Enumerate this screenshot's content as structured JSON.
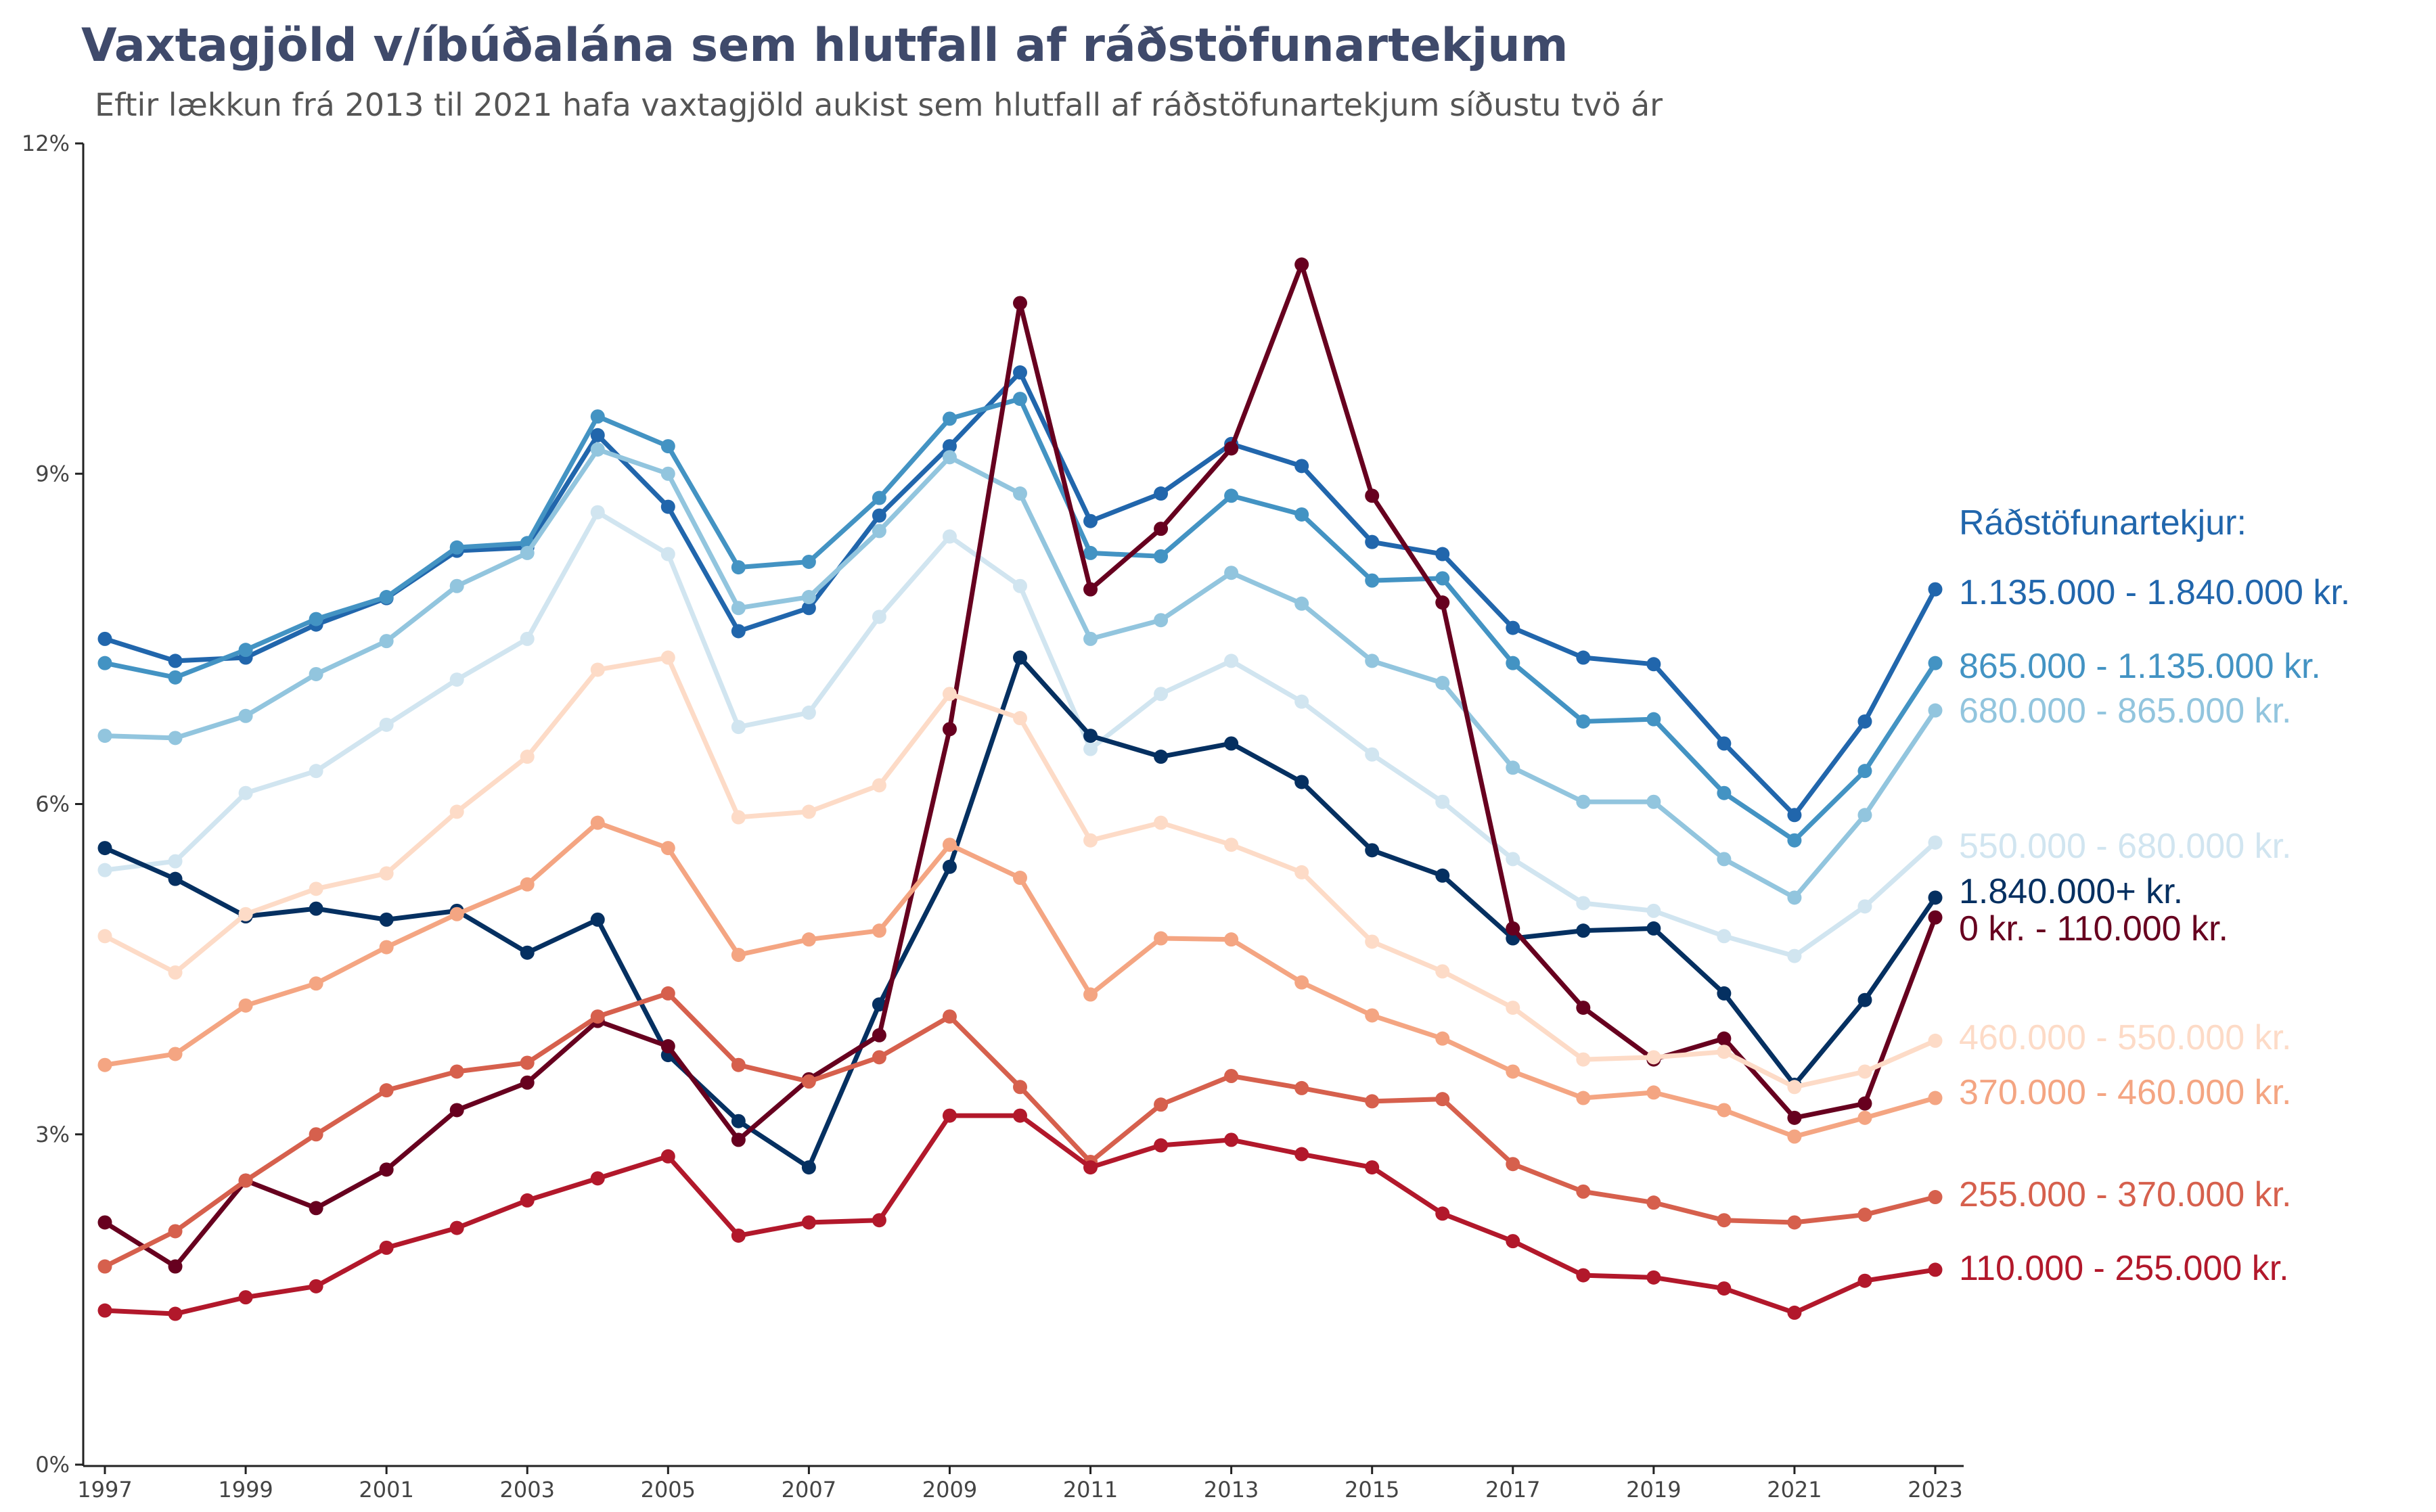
{
  "chart_data": {
    "type": "line",
    "title": "Vaxtagjöld v/íbúðalána sem hlutfall af ráðstöfunartekjum",
    "subtitle": "Eftir lækkun frá 2013 til 2021 hafa vaxtagjöld aukist sem hlutfall af ráðstöfunartekjum síðustu tvö ár",
    "legend_title": "Ráðstöfunartekjur:",
    "x": [
      1997,
      1998,
      1999,
      2000,
      2001,
      2002,
      2003,
      2004,
      2005,
      2006,
      2007,
      2008,
      2009,
      2010,
      2011,
      2012,
      2013,
      2014,
      2015,
      2016,
      2017,
      2018,
      2019,
      2020,
      2021,
      2022,
      2023
    ],
    "x_ticks": [
      1997,
      1999,
      2001,
      2003,
      2005,
      2007,
      2009,
      2011,
      2013,
      2015,
      2017,
      2019,
      2021,
      2023
    ],
    "y_ticks": [
      0,
      3,
      6,
      9,
      12
    ],
    "y_tick_labels": [
      "0%",
      "3%",
      "6%",
      "9%",
      "12%"
    ],
    "ylim": [
      0,
      12
    ],
    "xlabel": "",
    "ylabel": "",
    "grid": false,
    "legend_placement": "right (direct labels at line ends)",
    "series": [
      {
        "name": "1.135.000 - 1.840.000 kr.",
        "color": "#2166ac",
        "values": [
          7.5,
          7.3,
          7.33,
          7.63,
          7.87,
          8.3,
          8.33,
          9.35,
          8.7,
          7.57,
          7.78,
          8.62,
          9.25,
          9.92,
          8.57,
          8.82,
          9.27,
          9.07,
          8.38,
          8.27,
          7.6,
          7.33,
          7.27,
          6.55,
          5.9,
          6.75,
          7.95
        ]
      },
      {
        "name": "865.000 - 1.135.000 kr.",
        "color": "#4393c3",
        "values": [
          7.28,
          7.15,
          7.4,
          7.68,
          7.88,
          8.33,
          8.37,
          9.52,
          9.25,
          8.15,
          8.2,
          8.78,
          9.5,
          9.68,
          8.28,
          8.25,
          8.8,
          8.63,
          8.03,
          8.05,
          7.28,
          6.75,
          6.77,
          6.1,
          5.67,
          6.3,
          7.28
        ]
      },
      {
        "name": "680.000 - 865.000 kr.",
        "color": "#92c5de",
        "values": [
          6.62,
          6.6,
          6.8,
          7.18,
          7.48,
          7.98,
          8.28,
          9.22,
          9.0,
          7.78,
          7.88,
          8.48,
          9.15,
          8.82,
          7.5,
          7.67,
          8.1,
          7.82,
          7.3,
          7.1,
          6.33,
          6.02,
          6.02,
          5.5,
          5.15,
          5.9,
          6.85
        ]
      },
      {
        "name": "550.000 - 680.000 kr.",
        "color": "#d1e5f0",
        "values": [
          5.4,
          5.48,
          6.1,
          6.3,
          6.72,
          7.13,
          7.5,
          8.65,
          8.27,
          6.7,
          6.83,
          7.7,
          8.43,
          7.98,
          6.5,
          7.0,
          7.3,
          6.93,
          6.45,
          6.02,
          5.5,
          5.1,
          5.03,
          4.8,
          4.62,
          5.07,
          5.65
        ]
      },
      {
        "name": "1.840.000+ kr.",
        "color": "#053061",
        "values": [
          5.6,
          5.32,
          4.98,
          5.05,
          4.95,
          5.03,
          4.65,
          4.95,
          3.72,
          3.12,
          2.7,
          4.18,
          5.43,
          7.33,
          6.62,
          6.43,
          6.55,
          6.2,
          5.58,
          5.35,
          4.78,
          4.85,
          4.87,
          4.28,
          3.45,
          4.22,
          5.15
        ]
      },
      {
        "name": "0 kr. - 110.000 kr.",
        "color": "#67001f",
        "values": [
          2.2,
          1.8,
          2.58,
          2.33,
          2.68,
          3.22,
          3.47,
          4.03,
          3.8,
          2.95,
          3.5,
          3.9,
          6.68,
          10.55,
          7.95,
          8.5,
          9.23,
          10.9,
          8.8,
          7.83,
          4.87,
          4.15,
          3.68,
          3.87,
          3.15,
          3.28,
          4.97
        ]
      },
      {
        "name": "460.000 - 550.000 kr.",
        "color": "#fddbc7",
        "values": [
          4.8,
          4.47,
          5.0,
          5.23,
          5.37,
          5.93,
          6.43,
          7.22,
          7.33,
          5.88,
          5.93,
          6.17,
          7.0,
          6.78,
          5.67,
          5.83,
          5.63,
          5.38,
          4.75,
          4.48,
          4.15,
          3.68,
          3.7,
          3.75,
          3.43,
          3.57,
          3.85
        ]
      },
      {
        "name": "370.000 - 460.000 kr.",
        "color": "#f4a582",
        "values": [
          3.63,
          3.73,
          4.17,
          4.37,
          4.7,
          5.0,
          5.27,
          5.83,
          5.6,
          4.63,
          4.77,
          4.85,
          5.63,
          5.33,
          4.27,
          4.78,
          4.77,
          4.38,
          4.08,
          3.87,
          3.57,
          3.33,
          3.38,
          3.22,
          2.98,
          3.15,
          3.33
        ]
      },
      {
        "name": "255.000 - 370.000 kr.",
        "color": "#d6604d",
        "values": [
          1.8,
          2.12,
          2.58,
          3.0,
          3.4,
          3.57,
          3.65,
          4.07,
          4.28,
          3.63,
          3.48,
          3.7,
          4.07,
          3.43,
          2.75,
          3.27,
          3.53,
          3.42,
          3.3,
          3.32,
          2.73,
          2.48,
          2.38,
          2.22,
          2.2,
          2.27,
          2.43
        ]
      },
      {
        "name": "110.000 - 255.000 kr.",
        "color": "#b2182b",
        "values": [
          1.4,
          1.37,
          1.52,
          1.62,
          1.97,
          2.15,
          2.4,
          2.6,
          2.8,
          2.08,
          2.2,
          2.22,
          3.17,
          3.17,
          2.7,
          2.9,
          2.95,
          2.82,
          2.7,
          2.28,
          2.03,
          1.72,
          1.7,
          1.6,
          1.38,
          1.67,
          1.77
        ]
      }
    ]
  }
}
